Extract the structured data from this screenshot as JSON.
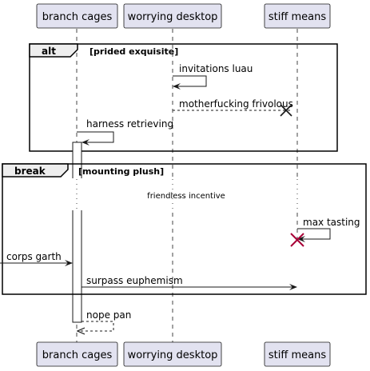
{
  "participants": {
    "p1": "branch cages",
    "p2": "worrying desktop",
    "p3": "stiff means"
  },
  "fragments": {
    "alt": {
      "keyword": "alt",
      "guard": "[prided exquisite]"
    },
    "break": {
      "keyword": "break",
      "guard": "[mounting plush]"
    }
  },
  "messages": {
    "m1": "invitations luau",
    "m2": "motherfucking frivolous",
    "m3": "harness retrieving",
    "m4": "max tasting",
    "m5": "corps garth",
    "m6": "surpass euphemism",
    "m7": "nope pan"
  },
  "divider": {
    "label": "friendless incentive"
  },
  "colors": {
    "participant_fill": "#E2E2F0",
    "participant_border": "#181818",
    "lifeline": "#181818",
    "destroy_red": "#A80036"
  }
}
